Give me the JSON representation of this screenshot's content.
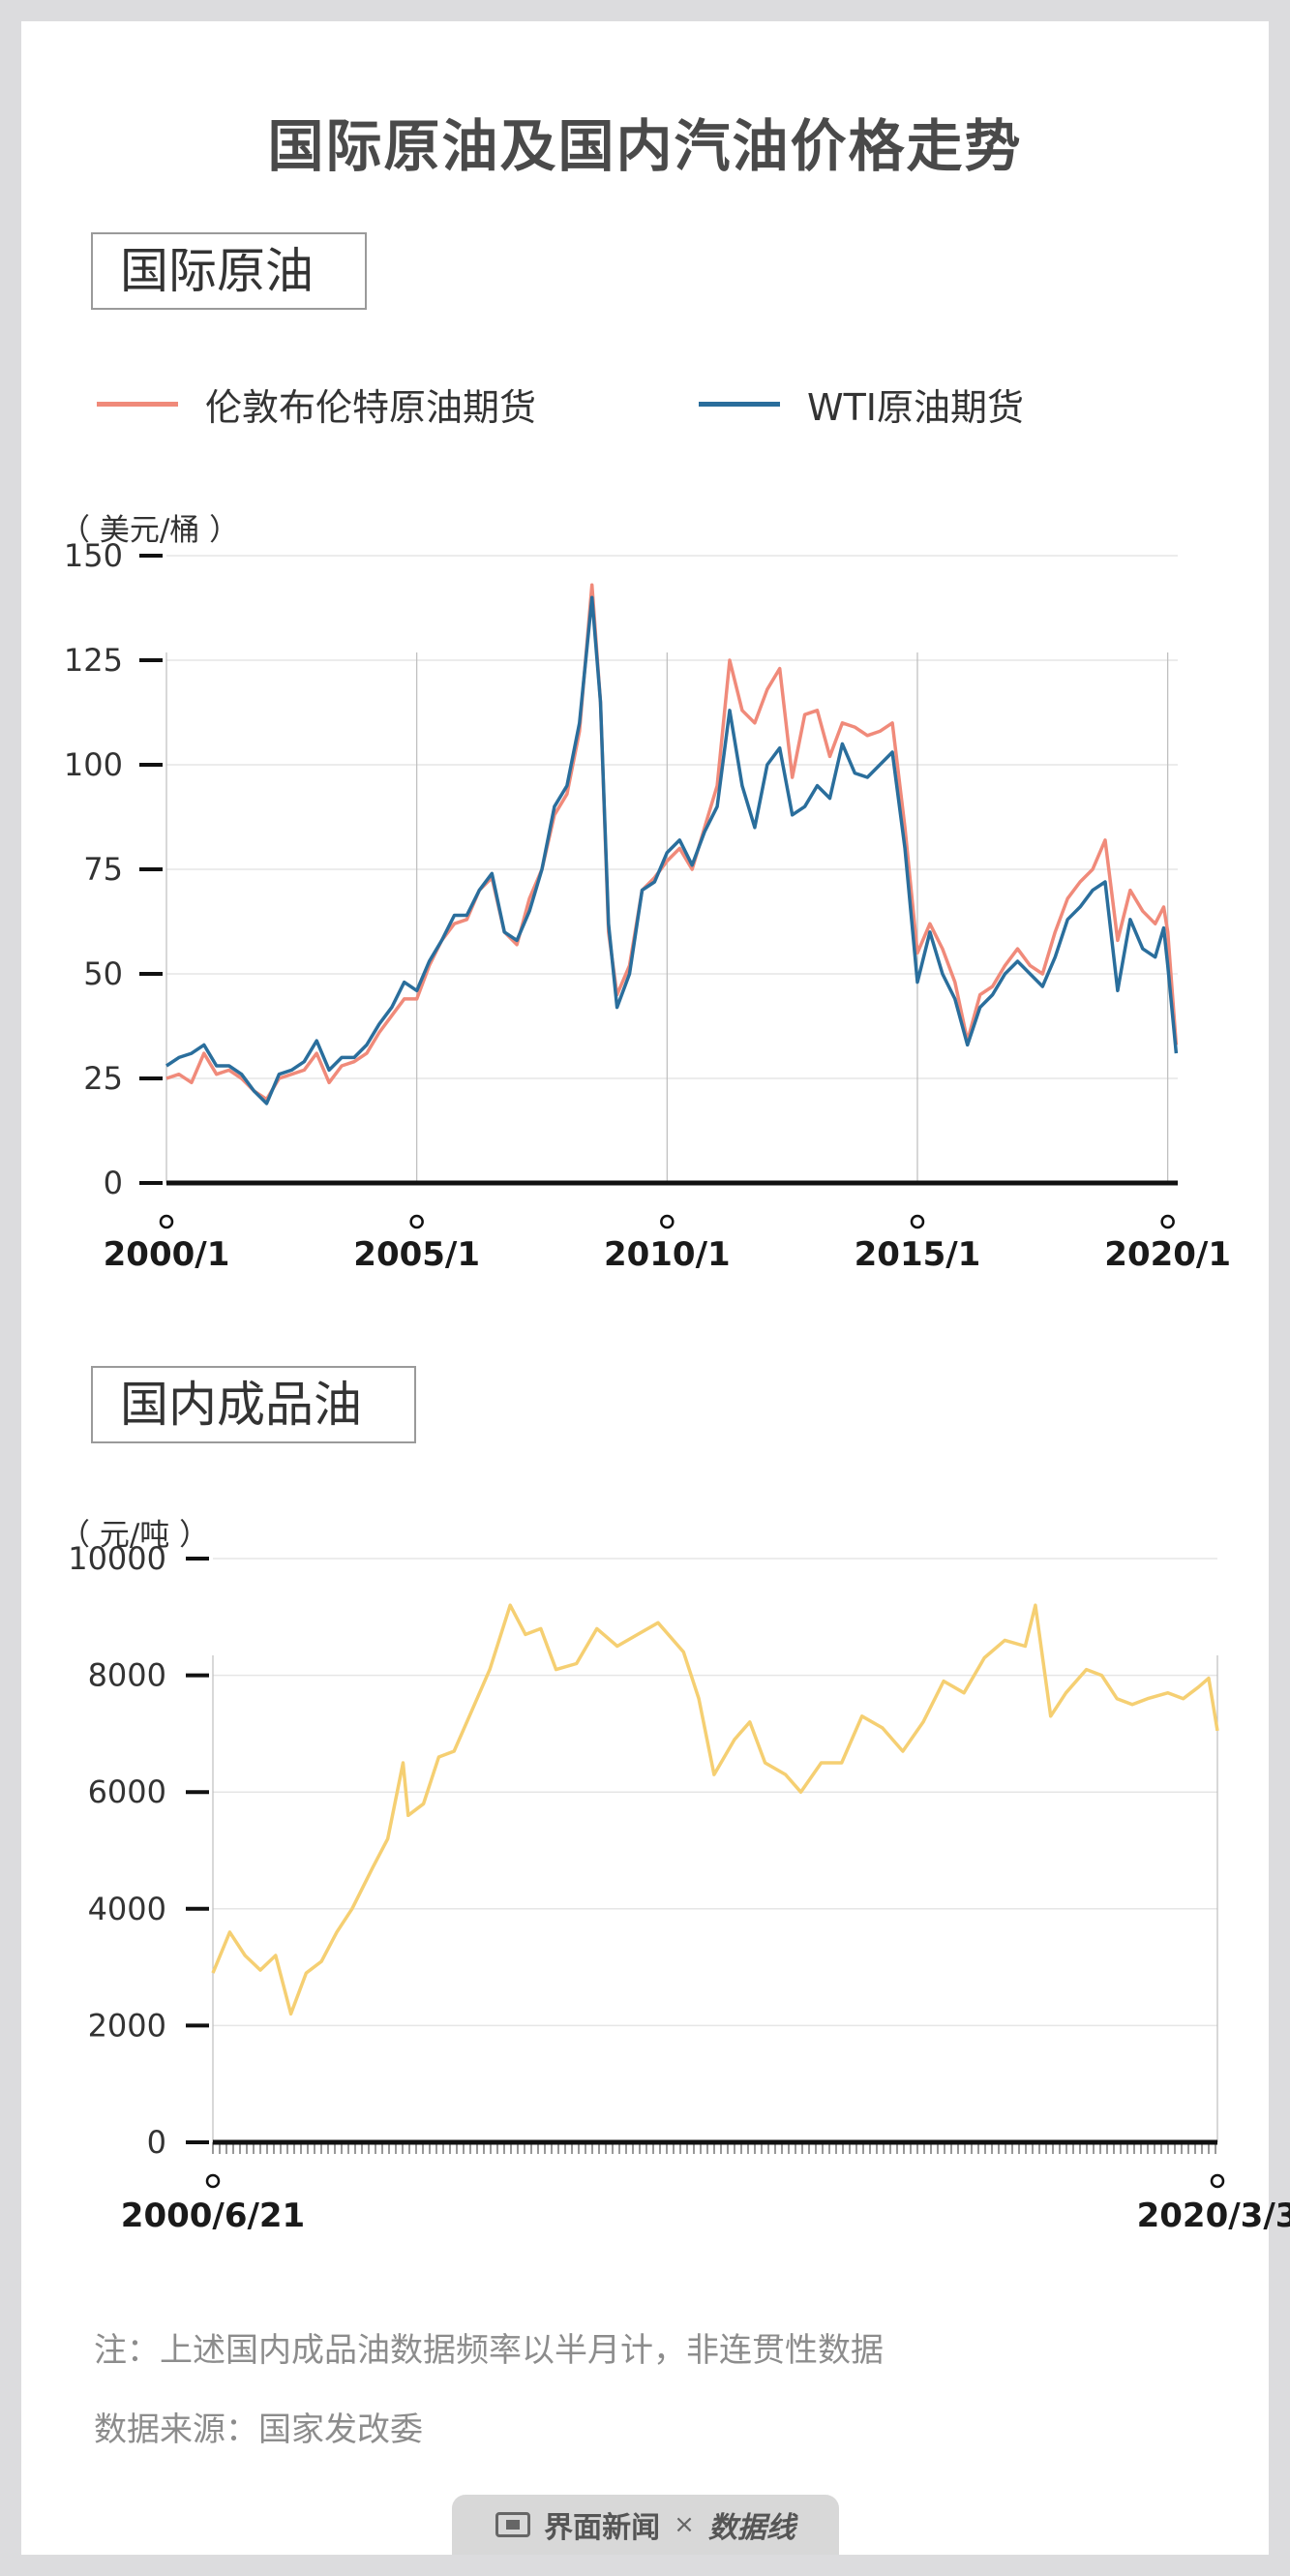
{
  "title": "国际原油及国内汽油价格走势",
  "section1": {
    "title": "国际原油",
    "unit": "（ 美元/桶 ）",
    "legend": [
      {
        "label": "伦敦布伦特原油期货",
        "color": "#f08a7a"
      },
      {
        "label": "WTI原油期货",
        "color": "#2a6e9c"
      }
    ]
  },
  "section2": {
    "title": "国内成品油",
    "unit": "（ 元/吨 ）"
  },
  "note": "注：上述国内成品油数据频率以半月计，非连贯性数据",
  "source": "数据来源：国家发改委",
  "footer": {
    "brand": "界面新闻",
    "separator": "×",
    "partner": "数据线"
  },
  "colors": {
    "brent": "#f08a7a",
    "wti": "#2a6e9c",
    "gasoline": "#f5cf72",
    "axis": "#111111",
    "grid": "#e6e6e6"
  },
  "chart_data": [
    {
      "type": "line",
      "title": "国际原油",
      "ylabel": "（ 美元/桶 ）",
      "ylim": [
        0,
        150
      ],
      "yticks": [
        0,
        25,
        50,
        75,
        100,
        125,
        150
      ],
      "xlim": [
        2000.0,
        2020.2
      ],
      "xticks": [
        {
          "value": 2000.0,
          "label": "2000/1"
        },
        {
          "value": 2005.0,
          "label": "2005/1"
        },
        {
          "value": 2010.0,
          "label": "2010/1"
        },
        {
          "value": 2015.0,
          "label": "2015/1"
        },
        {
          "value": 2020.0,
          "label": "2020/1"
        }
      ],
      "grid": true,
      "legend": "top",
      "series": [
        {
          "name": "伦敦布伦特原油期货",
          "color": "#f08a7a",
          "points": [
            [
              2000.0,
              25
            ],
            [
              2000.25,
              26
            ],
            [
              2000.5,
              24
            ],
            [
              2000.75,
              31
            ],
            [
              2001.0,
              26
            ],
            [
              2001.25,
              27
            ],
            [
              2001.5,
              25
            ],
            [
              2001.75,
              22
            ],
            [
              2002.0,
              20
            ],
            [
              2002.25,
              25
            ],
            [
              2002.5,
              26
            ],
            [
              2002.75,
              27
            ],
            [
              2003.0,
              31
            ],
            [
              2003.25,
              24
            ],
            [
              2003.5,
              28
            ],
            [
              2003.75,
              29
            ],
            [
              2004.0,
              31
            ],
            [
              2004.25,
              36
            ],
            [
              2004.5,
              40
            ],
            [
              2004.75,
              44
            ],
            [
              2005.0,
              44
            ],
            [
              2005.25,
              52
            ],
            [
              2005.5,
              58
            ],
            [
              2005.75,
              62
            ],
            [
              2006.0,
              63
            ],
            [
              2006.25,
              70
            ],
            [
              2006.5,
              73
            ],
            [
              2006.75,
              60
            ],
            [
              2007.0,
              57
            ],
            [
              2007.25,
              68
            ],
            [
              2007.5,
              75
            ],
            [
              2007.75,
              88
            ],
            [
              2008.0,
              93
            ],
            [
              2008.25,
              108
            ],
            [
              2008.5,
              143
            ],
            [
              2008.67,
              115
            ],
            [
              2008.83,
              60
            ],
            [
              2009.0,
              45
            ],
            [
              2009.25,
              52
            ],
            [
              2009.5,
              70
            ],
            [
              2009.75,
              73
            ],
            [
              2010.0,
              77
            ],
            [
              2010.25,
              80
            ],
            [
              2010.5,
              75
            ],
            [
              2010.75,
              85
            ],
            [
              2011.0,
              95
            ],
            [
              2011.25,
              125
            ],
            [
              2011.5,
              113
            ],
            [
              2011.75,
              110
            ],
            [
              2012.0,
              118
            ],
            [
              2012.25,
              123
            ],
            [
              2012.5,
              97
            ],
            [
              2012.75,
              112
            ],
            [
              2013.0,
              113
            ],
            [
              2013.25,
              102
            ],
            [
              2013.5,
              110
            ],
            [
              2013.75,
              109
            ],
            [
              2014.0,
              107
            ],
            [
              2014.25,
              108
            ],
            [
              2014.5,
              110
            ],
            [
              2014.75,
              85
            ],
            [
              2015.0,
              55
            ],
            [
              2015.25,
              62
            ],
            [
              2015.5,
              56
            ],
            [
              2015.75,
              48
            ],
            [
              2016.0,
              34
            ],
            [
              2016.25,
              45
            ],
            [
              2016.5,
              47
            ],
            [
              2016.75,
              52
            ],
            [
              2017.0,
              56
            ],
            [
              2017.25,
              52
            ],
            [
              2017.5,
              50
            ],
            [
              2017.75,
              60
            ],
            [
              2018.0,
              68
            ],
            [
              2018.25,
              72
            ],
            [
              2018.5,
              75
            ],
            [
              2018.75,
              82
            ],
            [
              2019.0,
              58
            ],
            [
              2019.25,
              70
            ],
            [
              2019.5,
              65
            ],
            [
              2019.75,
              62
            ],
            [
              2019.92,
              66
            ],
            [
              2020.0,
              60
            ],
            [
              2020.17,
              33
            ]
          ]
        },
        {
          "name": "WTI原油期货",
          "color": "#2a6e9c",
          "points": [
            [
              2000.0,
              28
            ],
            [
              2000.25,
              30
            ],
            [
              2000.5,
              31
            ],
            [
              2000.75,
              33
            ],
            [
              2001.0,
              28
            ],
            [
              2001.25,
              28
            ],
            [
              2001.5,
              26
            ],
            [
              2001.75,
              22
            ],
            [
              2002.0,
              19
            ],
            [
              2002.25,
              26
            ],
            [
              2002.5,
              27
            ],
            [
              2002.75,
              29
            ],
            [
              2003.0,
              34
            ],
            [
              2003.25,
              27
            ],
            [
              2003.5,
              30
            ],
            [
              2003.75,
              30
            ],
            [
              2004.0,
              33
            ],
            [
              2004.25,
              38
            ],
            [
              2004.5,
              42
            ],
            [
              2004.75,
              48
            ],
            [
              2005.0,
              46
            ],
            [
              2005.25,
              53
            ],
            [
              2005.5,
              58
            ],
            [
              2005.75,
              64
            ],
            [
              2006.0,
              64
            ],
            [
              2006.25,
              70
            ],
            [
              2006.5,
              74
            ],
            [
              2006.75,
              60
            ],
            [
              2007.0,
              58
            ],
            [
              2007.25,
              65
            ],
            [
              2007.5,
              75
            ],
            [
              2007.75,
              90
            ],
            [
              2008.0,
              95
            ],
            [
              2008.25,
              110
            ],
            [
              2008.5,
              140
            ],
            [
              2008.67,
              115
            ],
            [
              2008.83,
              62
            ],
            [
              2009.0,
              42
            ],
            [
              2009.25,
              50
            ],
            [
              2009.5,
              70
            ],
            [
              2009.75,
              72
            ],
            [
              2010.0,
              79
            ],
            [
              2010.25,
              82
            ],
            [
              2010.5,
              76
            ],
            [
              2010.75,
              84
            ],
            [
              2011.0,
              90
            ],
            [
              2011.25,
              113
            ],
            [
              2011.5,
              95
            ],
            [
              2011.75,
              85
            ],
            [
              2012.0,
              100
            ],
            [
              2012.25,
              104
            ],
            [
              2012.5,
              88
            ],
            [
              2012.75,
              90
            ],
            [
              2013.0,
              95
            ],
            [
              2013.25,
              92
            ],
            [
              2013.5,
              105
            ],
            [
              2013.75,
              98
            ],
            [
              2014.0,
              97
            ],
            [
              2014.25,
              100
            ],
            [
              2014.5,
              103
            ],
            [
              2014.75,
              80
            ],
            [
              2015.0,
              48
            ],
            [
              2015.25,
              60
            ],
            [
              2015.5,
              50
            ],
            [
              2015.75,
              44
            ],
            [
              2016.0,
              33
            ],
            [
              2016.25,
              42
            ],
            [
              2016.5,
              45
            ],
            [
              2016.75,
              50
            ],
            [
              2017.0,
              53
            ],
            [
              2017.25,
              50
            ],
            [
              2017.5,
              47
            ],
            [
              2017.75,
              54
            ],
            [
              2018.0,
              63
            ],
            [
              2018.25,
              66
            ],
            [
              2018.5,
              70
            ],
            [
              2018.75,
              72
            ],
            [
              2019.0,
              46
            ],
            [
              2019.25,
              63
            ],
            [
              2019.5,
              56
            ],
            [
              2019.75,
              54
            ],
            [
              2019.92,
              61
            ],
            [
              2020.0,
              52
            ],
            [
              2020.17,
              31
            ]
          ]
        }
      ]
    },
    {
      "type": "line",
      "title": "国内成品油",
      "ylabel": "（ 元/吨 ）",
      "ylim": [
        0,
        10000
      ],
      "yticks": [
        0,
        2000,
        4000,
        6000,
        8000,
        10000
      ],
      "xlim": [
        2000.47,
        2020.17
      ],
      "xticks": [
        {
          "value": 2000.47,
          "label": "2000/6/21"
        },
        {
          "value": 2020.17,
          "label": "2020/3/3"
        }
      ],
      "grid": true,
      "series": [
        {
          "name": "",
          "color": "#f5cf72",
          "points": [
            [
              2000.47,
              2900
            ],
            [
              2000.8,
              3600
            ],
            [
              2001.1,
              3200
            ],
            [
              2001.4,
              2950
            ],
            [
              2001.7,
              3200
            ],
            [
              2002.0,
              2200
            ],
            [
              2002.3,
              2900
            ],
            [
              2002.6,
              3100
            ],
            [
              2002.9,
              3600
            ],
            [
              2003.2,
              4000
            ],
            [
              2003.6,
              4700
            ],
            [
              2003.9,
              5200
            ],
            [
              2004.2,
              6500
            ],
            [
              2004.3,
              5600
            ],
            [
              2004.6,
              5800
            ],
            [
              2004.9,
              6600
            ],
            [
              2005.2,
              6700
            ],
            [
              2005.6,
              7500
            ],
            [
              2005.9,
              8100
            ],
            [
              2006.3,
              9200
            ],
            [
              2006.6,
              8700
            ],
            [
              2006.9,
              8800
            ],
            [
              2007.2,
              8100
            ],
            [
              2007.6,
              8200
            ],
            [
              2008.0,
              8800
            ],
            [
              2008.4,
              8500
            ],
            [
              2008.8,
              8700
            ],
            [
              2009.2,
              8900
            ],
            [
              2009.7,
              8400
            ],
            [
              2010.0,
              7600
            ],
            [
              2010.3,
              6300
            ],
            [
              2010.7,
              6900
            ],
            [
              2011.0,
              7200
            ],
            [
              2011.3,
              6500
            ],
            [
              2011.7,
              6300
            ],
            [
              2012.0,
              6000
            ],
            [
              2012.4,
              6500
            ],
            [
              2012.8,
              6500
            ],
            [
              2013.2,
              7300
            ],
            [
              2013.6,
              7100
            ],
            [
              2014.0,
              6700
            ],
            [
              2014.4,
              7200
            ],
            [
              2014.8,
              7900
            ],
            [
              2015.2,
              7700
            ],
            [
              2015.6,
              8300
            ],
            [
              2016.0,
              8600
            ],
            [
              2016.4,
              8500
            ],
            [
              2016.6,
              9200
            ],
            [
              2016.9,
              7300
            ],
            [
              2017.2,
              7700
            ],
            [
              2017.6,
              8100
            ],
            [
              2017.9,
              8000
            ],
            [
              2018.2,
              7600
            ],
            [
              2018.5,
              7500
            ],
            [
              2018.8,
              7600
            ],
            [
              2019.2,
              7700
            ],
            [
              2019.5,
              7600
            ],
            [
              2019.8,
              7800
            ],
            [
              2020.0,
              7950
            ],
            [
              2020.17,
              7050
            ]
          ]
        }
      ]
    }
  ]
}
